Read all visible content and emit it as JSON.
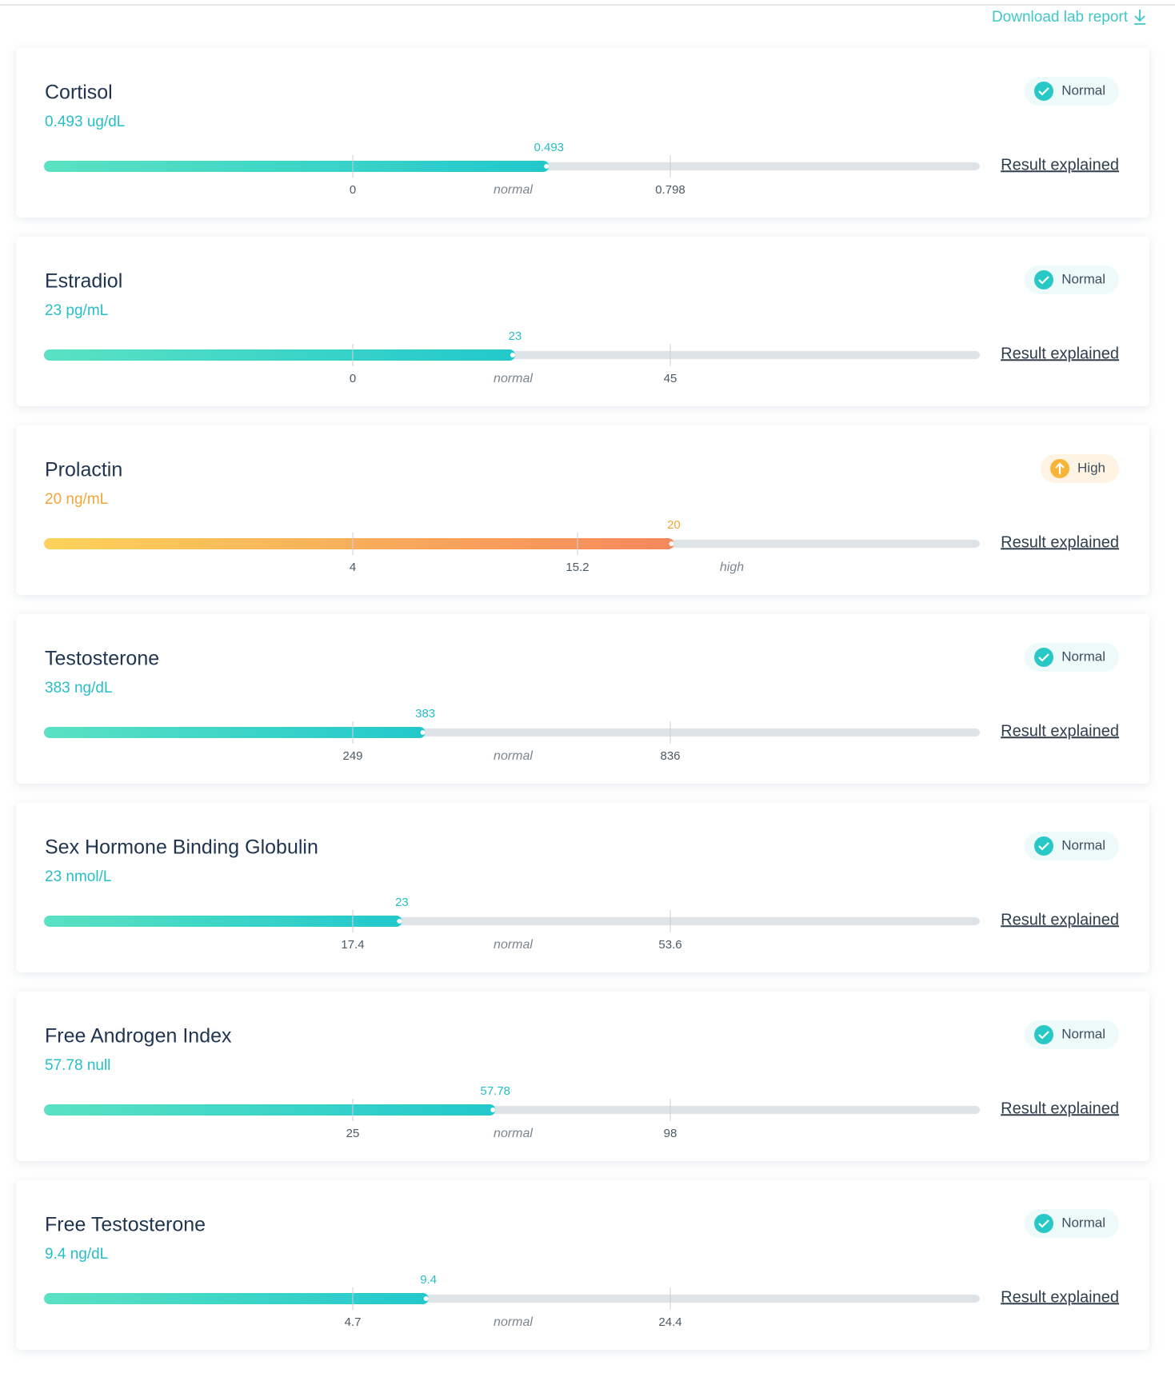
{
  "header": {
    "download": "Download lab report"
  },
  "results": [
    {
      "name": "Cortisol",
      "result": "0.493 ug/dL",
      "status": "Normal",
      "value": 0.493,
      "ref_low": 0,
      "ref_high": 0.798,
      "zone": "normal",
      "link": "Result explained"
    },
    {
      "name": "Estradiol",
      "result": "23 pg/mL",
      "status": "Normal",
      "value": 23,
      "ref_low": 0,
      "ref_high": 45,
      "zone": "normal",
      "link": "Result explained"
    },
    {
      "name": "Prolactin",
      "result": "20 ng/mL",
      "status": "High",
      "value": 20,
      "ref_low": 4,
      "ref_high": 15.2,
      "zone": "high",
      "link": "Result explained"
    },
    {
      "name": "Testosterone",
      "result": "383 ng/dL",
      "status": "Normal",
      "value": 383,
      "ref_low": 249,
      "ref_high": 836,
      "zone": "normal",
      "link": "Result explained"
    },
    {
      "name": "Sex Hormone Binding Globulin",
      "result": "23 nmol/L",
      "status": "Normal",
      "value": 23,
      "ref_low": 17.4,
      "ref_high": 53.6,
      "zone": "normal",
      "link": "Result explained"
    },
    {
      "name": "Free Androgen Index",
      "result": "57.78 null",
      "status": "Normal",
      "value": 57.78,
      "ref_low": 25,
      "ref_high": 98,
      "zone": "normal",
      "link": "Result explained"
    },
    {
      "name": "Free Testosterone",
      "result": "9.4 ng/dL",
      "status": "Normal",
      "value": 9.4,
      "ref_low": 4.7,
      "ref_high": 24.4,
      "zone": "normal",
      "link": "Result explained"
    }
  ]
}
